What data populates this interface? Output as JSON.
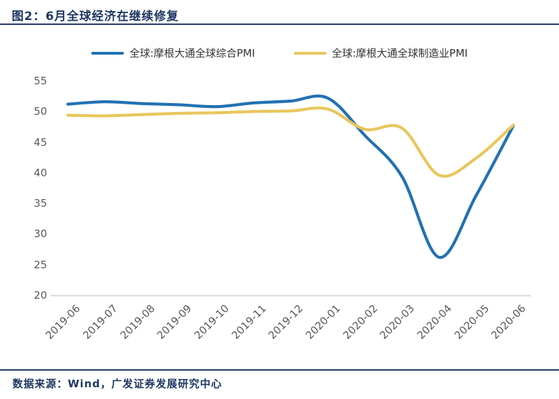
{
  "header": {
    "title": "图2：6月全球经济在继续修复"
  },
  "footer": {
    "source": "数据来源：Wind，广发证券发展研究中心"
  },
  "colors": {
    "accent_navy": "#1F3864",
    "composite_line": "#2271B3",
    "manufacturing_line": "#E8C75E",
    "axis_text": "#595959",
    "axis_line": "#D9D9D9"
  },
  "chart_data": {
    "type": "line",
    "title": "6月全球经济在继续修复",
    "xlabel": "",
    "ylabel": "",
    "categories": [
      "2019-06",
      "2019-07",
      "2019-08",
      "2019-09",
      "2019-10",
      "2019-11",
      "2019-12",
      "2020-01",
      "2020-02",
      "2020-03",
      "2020-04",
      "2020-05",
      "2020-06"
    ],
    "series": [
      {
        "name": "全球:摩根大通全球综合PMI",
        "color": "#2271B3",
        "values": [
          51.2,
          51.6,
          51.3,
          51.1,
          50.8,
          51.4,
          51.7,
          52.2,
          46.1,
          39.4,
          26.2,
          36.3,
          47.7
        ]
      },
      {
        "name": "全球:摩根大通全球制造业PMI",
        "color": "#E8C75E",
        "values": [
          49.4,
          49.3,
          49.5,
          49.7,
          49.8,
          50.0,
          50.1,
          50.4,
          47.1,
          47.3,
          39.6,
          42.4,
          47.8
        ]
      }
    ],
    "ylim": [
      20,
      55
    ],
    "yticks": [
      55,
      50,
      45,
      40,
      35,
      30,
      25,
      20
    ],
    "grid": false,
    "legend_position": "top",
    "smooth": true
  }
}
